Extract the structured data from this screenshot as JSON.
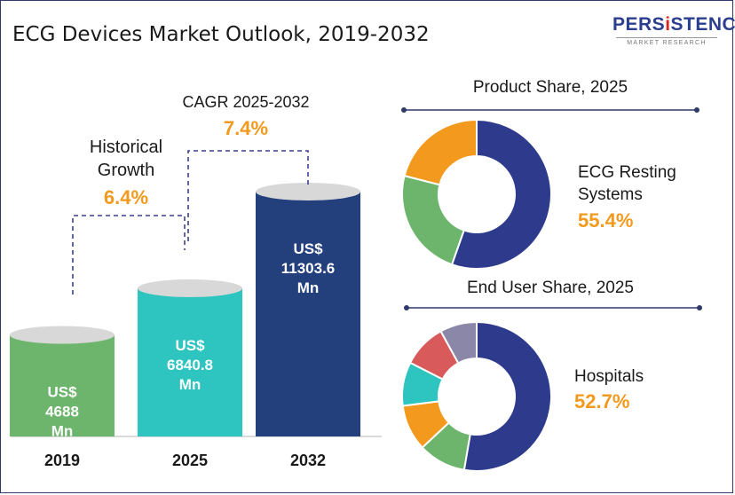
{
  "title": "ECG Devices Market Outlook, 2019-2032",
  "logo": {
    "brand_part1": "PERS",
    "brand_accent": "i",
    "brand_part2": "STENCE",
    "subtitle": "MARKET RESEARCH"
  },
  "colors": {
    "bar_2019": "#6db56d",
    "bar_2025": "#2ec4c0",
    "bar_2032": "#233f7c",
    "bar_top": "#d8d8d8",
    "accent_orange": "#f39a1e",
    "dash_line": "#3b3f8f",
    "donut_navy": "#2e3a8c"
  },
  "annotations": {
    "historical": {
      "label_line1": "Historical",
      "label_line2": "Growth",
      "value": "6.4%"
    },
    "cagr": {
      "label": "CAGR 2025-2032",
      "value": "7.4%"
    }
  },
  "chart_data": [
    {
      "type": "bar",
      "title": "",
      "categories": [
        "2019",
        "2025",
        "2032"
      ],
      "values": [
        4688,
        6840.8,
        11303.6
      ],
      "unit": "US$ Mn",
      "bar_labels": [
        [
          "US$",
          "4688",
          "Mn"
        ],
        [
          "US$",
          "6840.8",
          "Mn"
        ],
        [
          "US$",
          "11303.6",
          "Mn"
        ]
      ],
      "ylim": [
        0,
        11303.6
      ]
    },
    {
      "type": "pie",
      "style": "donut",
      "title": "Product Share, 2025",
      "highlight_label": [
        "ECG Resting",
        "Systems"
      ],
      "highlight_value": "55.4%",
      "slices": [
        {
          "value": 55.4,
          "color": "#2e3a8c"
        },
        {
          "value": 23.6,
          "color": "#6db56d"
        },
        {
          "value": 21.0,
          "color": "#f39a1e"
        }
      ]
    },
    {
      "type": "pie",
      "style": "donut",
      "title": "End User Share, 2025",
      "highlight_label": [
        "Hospitals"
      ],
      "highlight_value": "52.7%",
      "slices": [
        {
          "value": 52.7,
          "color": "#2e3a8c"
        },
        {
          "value": 10.3,
          "color": "#6db56d"
        },
        {
          "value": 10.0,
          "color": "#f39a1e"
        },
        {
          "value": 9.5,
          "color": "#2ec4c0"
        },
        {
          "value": 9.5,
          "color": "#d85a5a"
        },
        {
          "value": 8.0,
          "color": "#8a87a8"
        }
      ]
    }
  ]
}
